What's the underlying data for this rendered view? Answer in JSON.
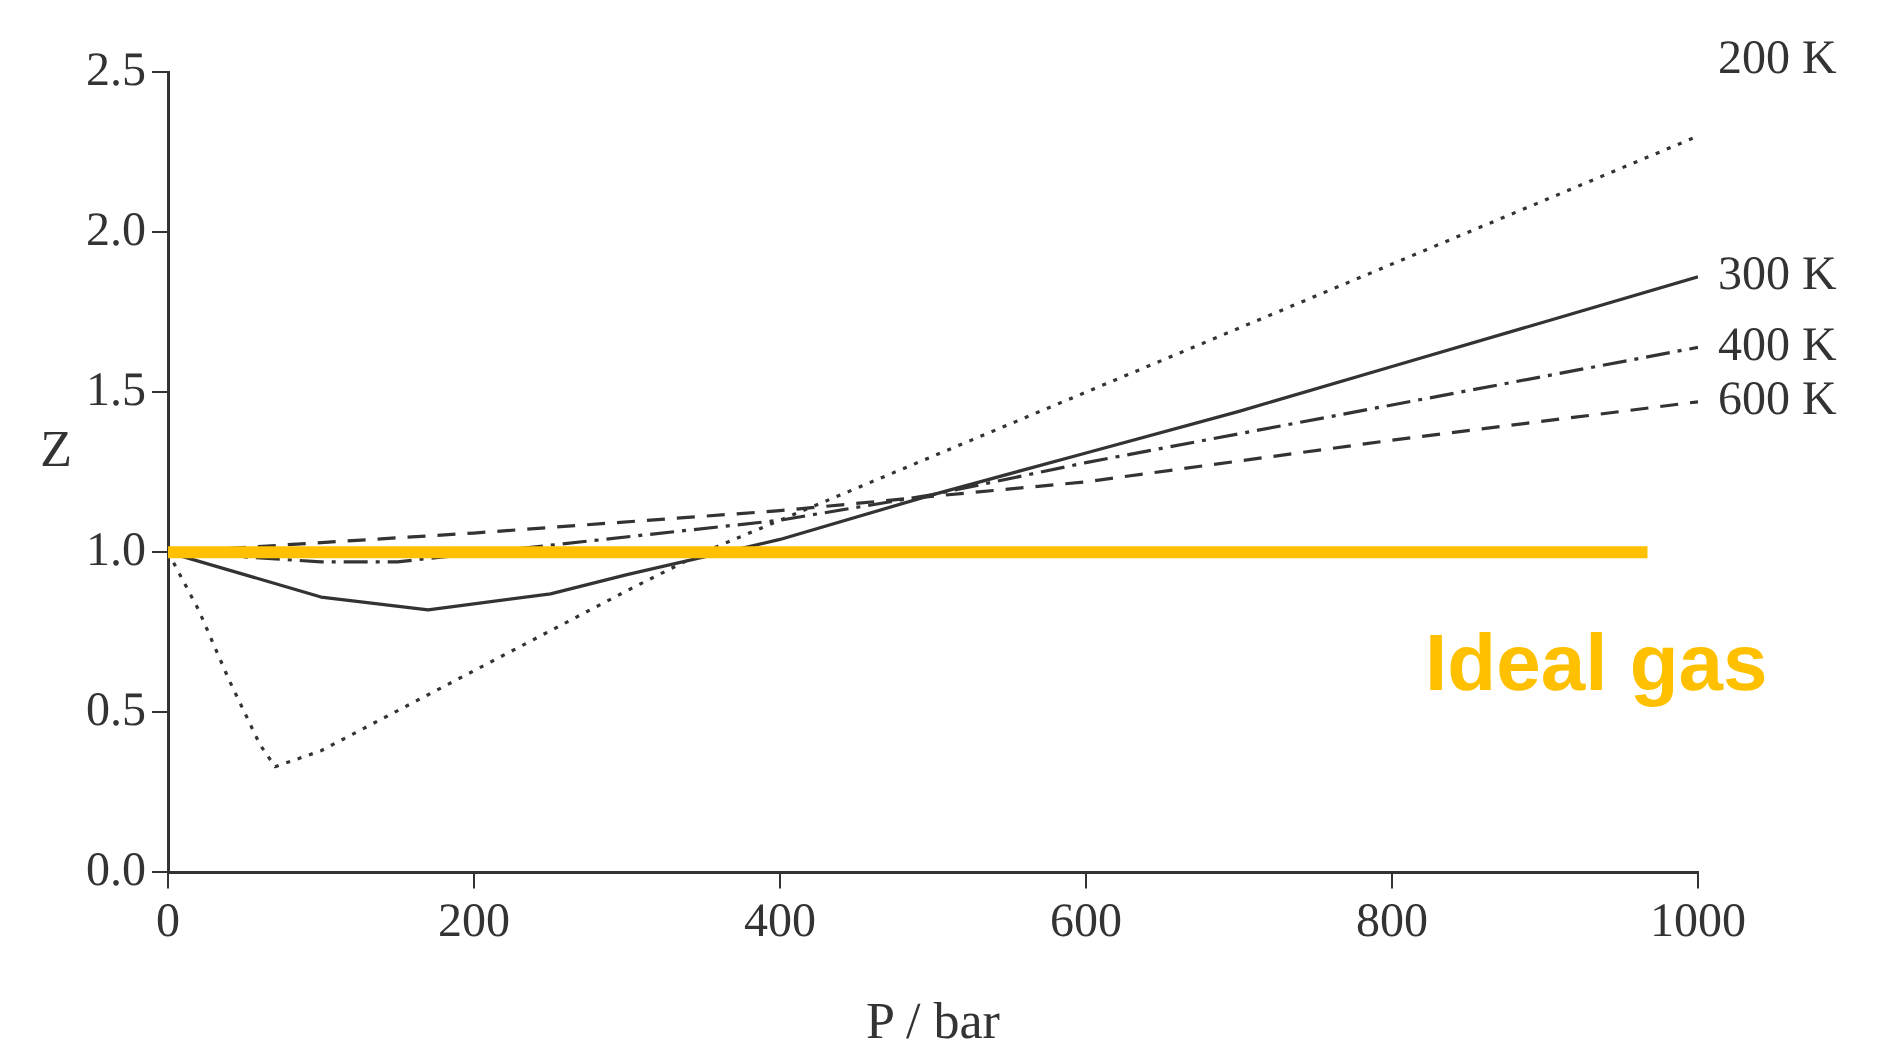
{
  "chart_data": {
    "type": "line",
    "xlabel": "P / bar",
    "ylabel": "Z",
    "xlim": [
      0,
      1000
    ],
    "xticks": [
      0,
      200,
      400,
      600,
      800,
      1000
    ],
    "ylim": [
      0,
      2.5
    ],
    "yticks": [
      {
        "value": 0,
        "label": "0.0"
      },
      {
        "value": 0.5,
        "label": "0.5"
      },
      {
        "value": 1,
        "label": "1.0"
      },
      {
        "value": 1.5,
        "label": "1.5"
      },
      {
        "value": 2,
        "label": "2.0"
      },
      {
        "value": 2.5,
        "label": "2.5"
      }
    ],
    "grid": false,
    "legend": false,
    "marker": "none",
    "series": [
      {
        "name": "200 K",
        "color": "#333333",
        "line_style": "dotted",
        "x": [
          0,
          20,
          40,
          60,
          70,
          100,
          200,
          300,
          350,
          400,
          500,
          600,
          700,
          800,
          900,
          1000
        ],
        "values": [
          1,
          0.82,
          0.6,
          0.4,
          0.33,
          0.38,
          0.63,
          0.88,
          1.0,
          1.1,
          1.3,
          1.5,
          1.7,
          1.9,
          2.1,
          2.3
        ]
      },
      {
        "name": "300 K",
        "color": "#333333",
        "line_style": "solid",
        "x": [
          0,
          50,
          100,
          170,
          250,
          300,
          400,
          500,
          600,
          700,
          800,
          900,
          1000
        ],
        "values": [
          1,
          0.93,
          0.86,
          0.82,
          0.87,
          0.93,
          1.04,
          1.18,
          1.31,
          1.44,
          1.58,
          1.72,
          1.86
        ]
      },
      {
        "name": "400 K",
        "color": "#333333",
        "line_style": "dashdot",
        "x": [
          0,
          100,
          150,
          400,
          500,
          600,
          700,
          800,
          900,
          1000
        ],
        "values": [
          1,
          0.97,
          0.97,
          1.1,
          1.18,
          1.28,
          1.37,
          1.46,
          1.55,
          1.64
        ]
      },
      {
        "name": "600 K",
        "color": "#333333",
        "line_style": "dashed",
        "x": [
          0,
          200,
          400,
          600,
          800,
          1000
        ],
        "values": [
          1,
          1.06,
          1.13,
          1.22,
          1.35,
          1.47
        ]
      },
      {
        "name": "Ideal gas",
        "color": "#ffc000",
        "line_style": "solid",
        "x": [
          0,
          967
        ],
        "values": [
          1,
          1
        ]
      }
    ]
  }
}
